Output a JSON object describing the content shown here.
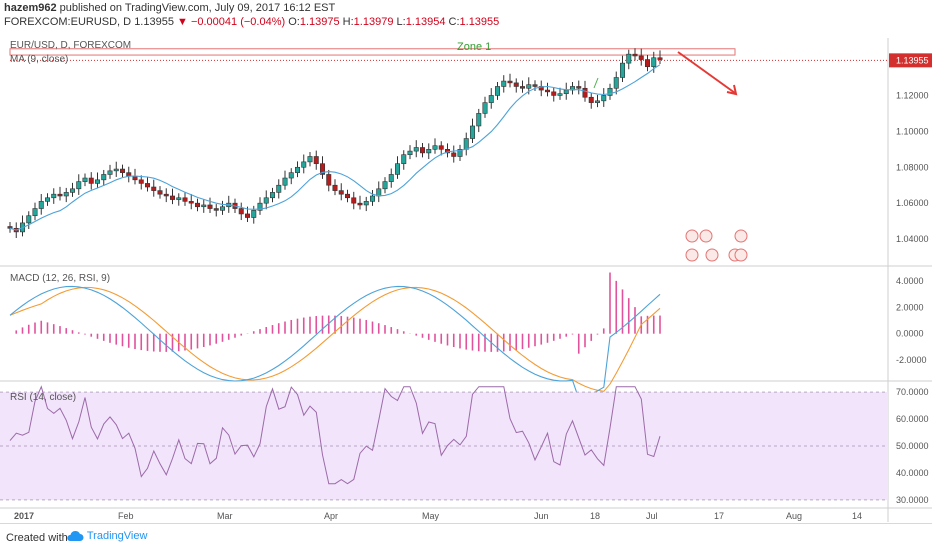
{
  "header": {
    "publisher": "hazem962",
    "published_text": "published on TradingView.com, July 09, 2017 16:12 EST",
    "symbol": "FOREXCOM:EURUSD, D",
    "last": "1.13955",
    "change": "▼ −0.00041 (−0.04%)",
    "o_label": "O:",
    "o": "1.13975",
    "h_label": "H:",
    "h": "1.13979",
    "l_label": "L:",
    "l": "1.13954",
    "c_label": "C:",
    "c": "1.13955"
  },
  "footer": {
    "created_with": "Created with",
    "brand": "TradingView"
  },
  "colors": {
    "up": "#26a69a",
    "down": "#b71c1c",
    "ma": "#4da3d9",
    "macd": "#4da3d9",
    "signal": "#f39c34",
    "hist": "#e0529c",
    "rsi": "#9c6aa8",
    "rsi_band": "#f1e4fb",
    "zone": "#e57373",
    "arrow": "#e53935",
    "price_badge": "#d32f2f"
  },
  "chart_data": [
    {
      "type": "candlestick",
      "title": "EUR/USD, D, FOREXCOM",
      "indicator_label": "MA (9, close)",
      "zone_label": "Zone 1",
      "ylim": [
        1.025,
        1.152
      ],
      "y_ticks": [
        "1.04000",
        "1.06000",
        "1.08000",
        "1.10000",
        "1.12000"
      ],
      "current_price": "1.13955",
      "x_labels": [
        "2017",
        "Feb",
        "Mar",
        "Apr",
        "May",
        "Jun",
        "18",
        "Jul",
        "17",
        "Aug",
        "14"
      ],
      "close_series": [
        1.046,
        1.044,
        1.049,
        1.053,
        1.057,
        1.061,
        1.063,
        1.065,
        1.064,
        1.066,
        1.068,
        1.072,
        1.074,
        1.071,
        1.073,
        1.076,
        1.078,
        1.079,
        1.077,
        1.075,
        1.073,
        1.071,
        1.069,
        1.067,
        1.065,
        1.064,
        1.062,
        1.063,
        1.061,
        1.06,
        1.058,
        1.059,
        1.057,
        1.056,
        1.058,
        1.06,
        1.057,
        1.054,
        1.052,
        1.056,
        1.06,
        1.063,
        1.066,
        1.07,
        1.074,
        1.077,
        1.08,
        1.083,
        1.086,
        1.082,
        1.076,
        1.07,
        1.067,
        1.065,
        1.063,
        1.06,
        1.059,
        1.061,
        1.064,
        1.068,
        1.072,
        1.076,
        1.082,
        1.087,
        1.089,
        1.091,
        1.088,
        1.09,
        1.092,
        1.09,
        1.088,
        1.086,
        1.09,
        1.096,
        1.103,
        1.11,
        1.116,
        1.12,
        1.125,
        1.128,
        1.127,
        1.125,
        1.124,
        1.126,
        1.125,
        1.123,
        1.122,
        1.12,
        1.121,
        1.123,
        1.125,
        1.124,
        1.119,
        1.116,
        1.117,
        1.12,
        1.124,
        1.13,
        1.138,
        1.143,
        1.142,
        1.14,
        1.136,
        1.141,
        1.14
      ]
    },
    {
      "type": "line",
      "title": "MACD (12, 26, RSI, 9)",
      "y_ticks": [
        "4.0000",
        "2.0000",
        "0.0000",
        "-2.0000"
      ],
      "ylim": [
        -3.6,
        5.0
      ],
      "series_names": [
        "MACD",
        "Signal",
        "Histogram"
      ]
    },
    {
      "type": "line",
      "title": "RSI (14, close)",
      "y_ticks": [
        "70.0000",
        "60.0000",
        "50.0000",
        "40.0000",
        "30.0000"
      ],
      "ylim": [
        27,
        73
      ],
      "band": [
        30,
        70
      ]
    }
  ]
}
